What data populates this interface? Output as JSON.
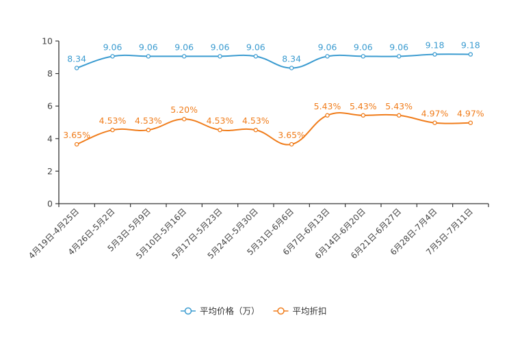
{
  "chart_data": {
    "type": "line",
    "title": "",
    "xlabel": "",
    "ylabel": "",
    "ylim": [
      0,
      10
    ],
    "yticks": [
      0,
      2,
      4,
      6,
      8,
      10
    ],
    "grid": false,
    "legend_position": "bottom-center",
    "categories": [
      "4月19日-4月25日",
      "4月26日-5月2日",
      "5月3日-5月9日",
      "5月10日-5月16日",
      "5月17日-5月23日",
      "5月24日-5月30日",
      "5月31日-6月6日",
      "6月7日-6月13日",
      "6月14日-6月20日",
      "6月21日-6月27日",
      "6月28日-7月4日",
      "7月5日-7月11日"
    ],
    "series": [
      {
        "name": "平均价格（万）",
        "color": "#3a9bd0",
        "values": [
          8.34,
          9.06,
          9.06,
          9.06,
          9.06,
          9.06,
          8.34,
          9.06,
          9.06,
          9.06,
          9.18,
          9.18
        ],
        "labels": [
          "8.34",
          "9.06",
          "9.06",
          "9.06",
          "9.06",
          "9.06",
          "8.34",
          "9.06",
          "9.06",
          "9.06",
          "9.18",
          "9.18"
        ]
      },
      {
        "name": "平均折扣",
        "color": "#f07c1a",
        "values": [
          3.65,
          4.53,
          4.53,
          5.2,
          4.53,
          4.53,
          3.65,
          5.43,
          5.43,
          5.43,
          4.97,
          4.97
        ],
        "labels": [
          "3.65%",
          "4.53%",
          "4.53%",
          "5.20%",
          "4.53%",
          "4.53%",
          "3.65%",
          "5.43%",
          "5.43%",
          "5.43%",
          "4.97%",
          "4.97%"
        ]
      }
    ]
  }
}
